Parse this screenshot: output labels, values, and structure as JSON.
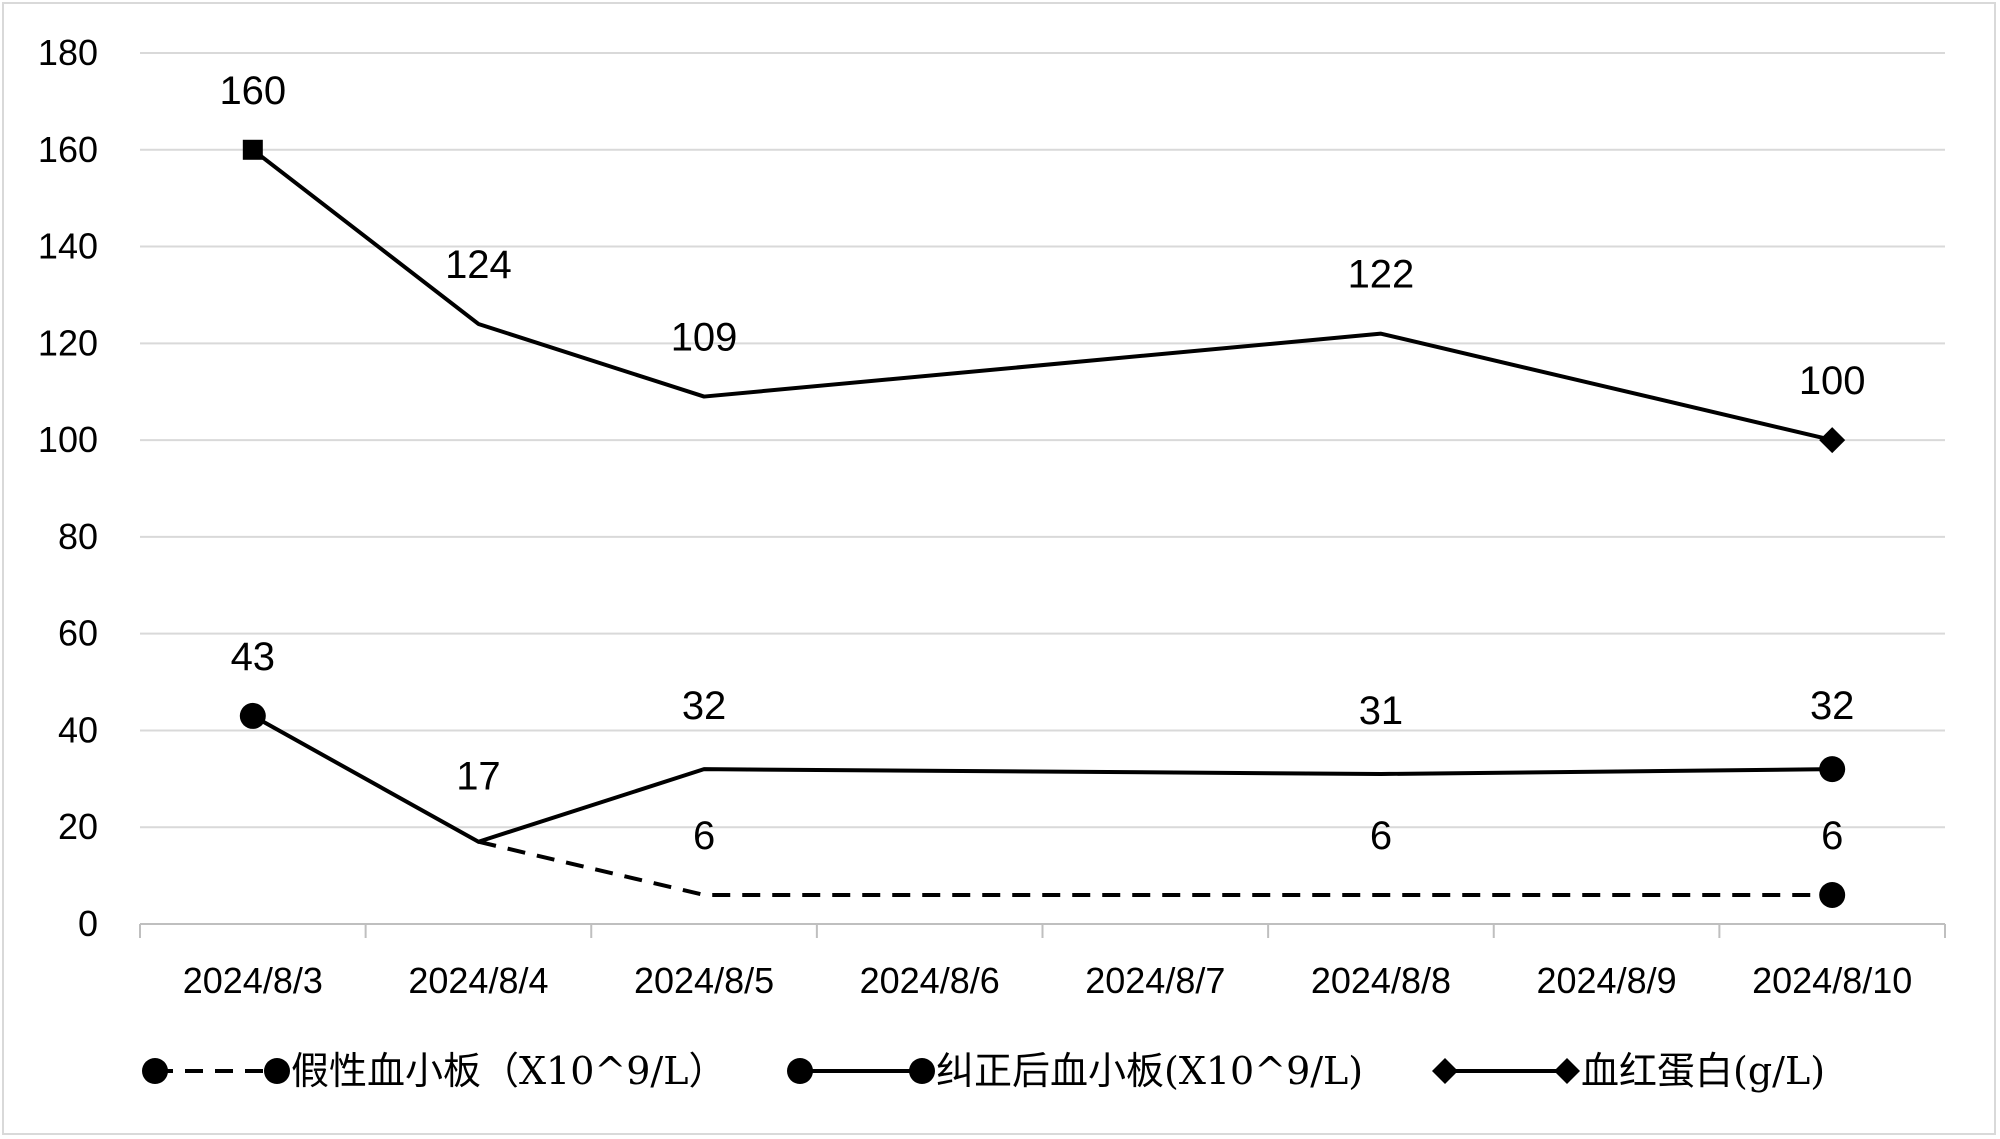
{
  "chart_data": {
    "type": "line",
    "categories": [
      "2024/8/3",
      "2024/8/4",
      "2024/8/5",
      "2024/8/6",
      "2024/8/7",
      "2024/8/8",
      "2024/8/9",
      "2024/8/10"
    ],
    "ylim": [
      0,
      180
    ],
    "yticks": [
      0,
      20,
      40,
      60,
      80,
      100,
      120,
      140,
      160,
      180
    ],
    "grid": true,
    "legend_position": "bottom",
    "series": [
      {
        "name": "假性血小板（X10^9/L）",
        "line_style": "dashed",
        "marker": "circle",
        "color": "#000000",
        "points": [
          {
            "x": "2024/8/4",
            "y": 17,
            "label": ""
          },
          {
            "x": "2024/8/5",
            "y": 6,
            "label": "6"
          },
          {
            "x": "2024/8/8",
            "y": 6,
            "label": "6"
          },
          {
            "x": "2024/8/10",
            "y": 6,
            "label": "6"
          }
        ]
      },
      {
        "name": "纠正后血小板(X10^9/L)",
        "line_style": "solid",
        "marker": "circle",
        "color": "#000000",
        "points": [
          {
            "x": "2024/8/3",
            "y": 43,
            "label": "43"
          },
          {
            "x": "2024/8/4",
            "y": 17,
            "label": "17"
          },
          {
            "x": "2024/8/5",
            "y": 32,
            "label": "32"
          },
          {
            "x": "2024/8/8",
            "y": 31,
            "label": "31"
          },
          {
            "x": "2024/8/10",
            "y": 32,
            "label": "32"
          }
        ]
      },
      {
        "name": "血红蛋白(g/L)",
        "line_style": "solid",
        "marker": "diamond",
        "color": "#000000",
        "points": [
          {
            "x": "2024/8/3",
            "y": 160,
            "label": "160"
          },
          {
            "x": "2024/8/4",
            "y": 124,
            "label": "124"
          },
          {
            "x": "2024/8/5",
            "y": 109,
            "label": "109"
          },
          {
            "x": "2024/8/8",
            "y": 122,
            "label": "122"
          },
          {
            "x": "2024/8/10",
            "y": 100,
            "label": "100"
          }
        ]
      }
    ]
  }
}
